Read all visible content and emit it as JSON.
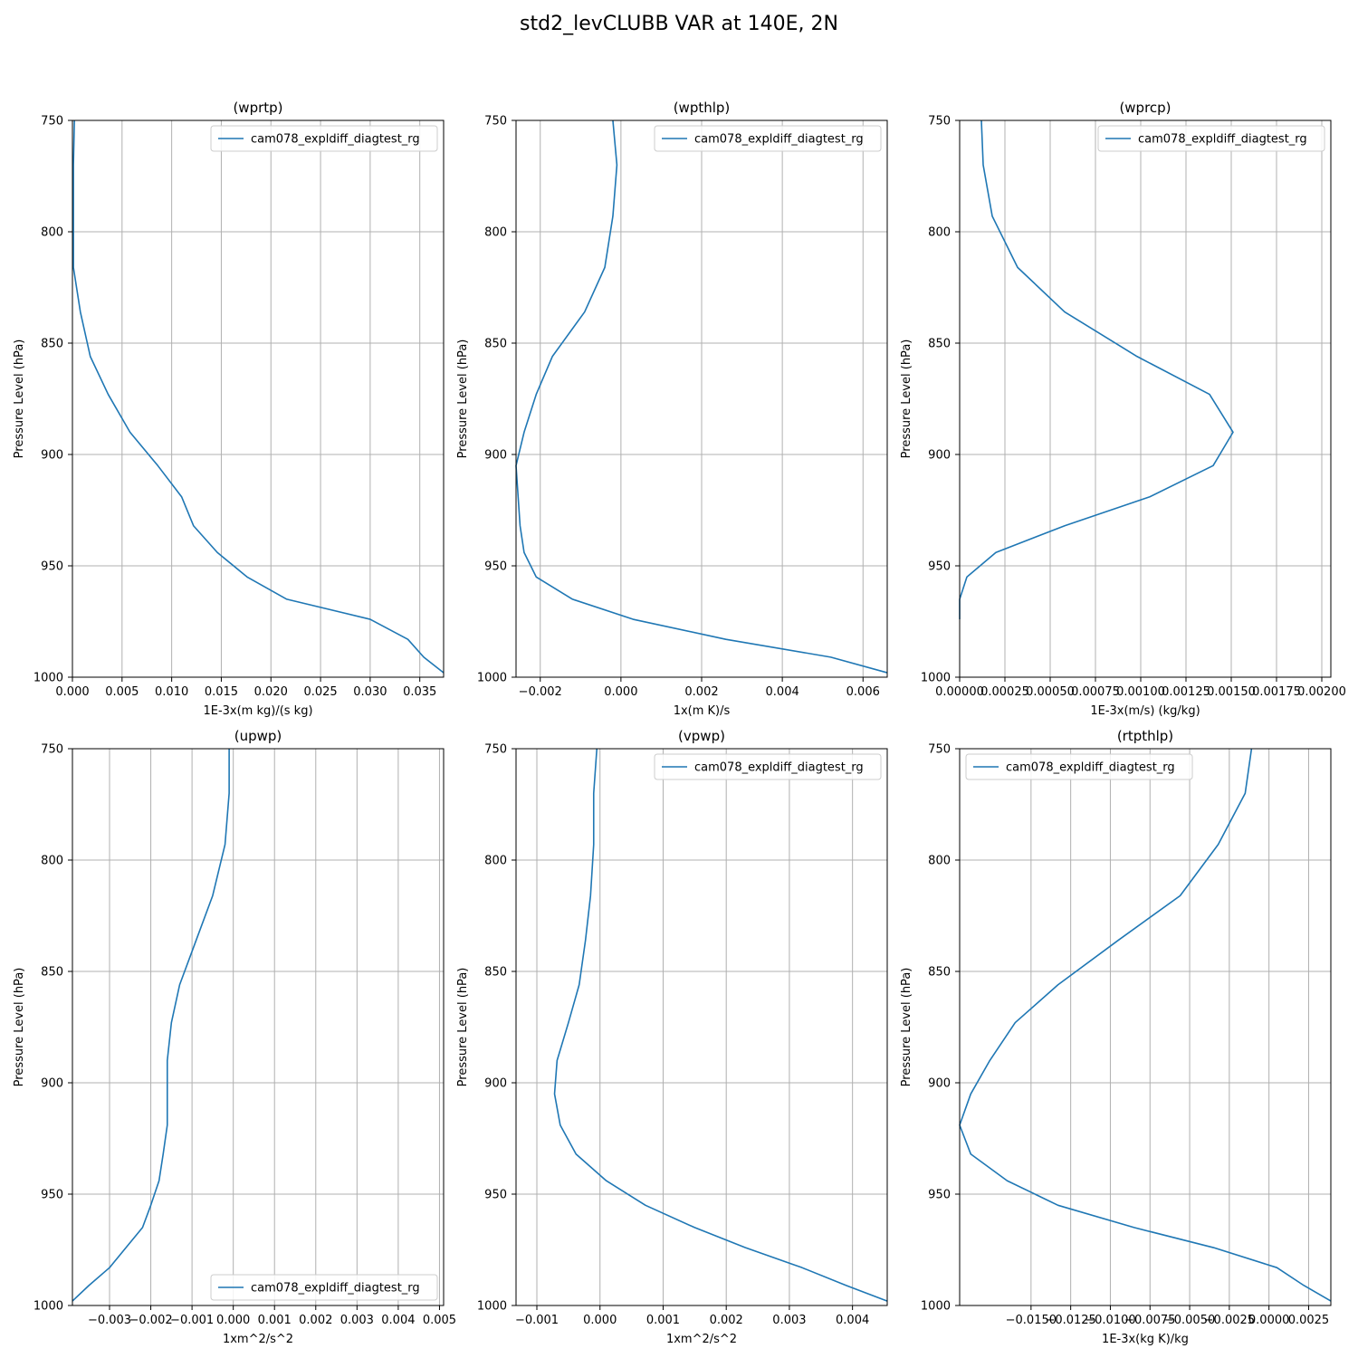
{
  "figure": {
    "suptitle": "std2_levCLUBB VAR at 140E, 2N"
  },
  "colors": {
    "series": "#1f77b4",
    "grid": "#b0b0b0",
    "axes": "#000000"
  },
  "chart_data": [
    {
      "type": "line",
      "title": "(wprtp)",
      "xlabel": "1E-3x(m kg)/(s kg)",
      "ylabel": "Pressure Level (hPa)",
      "xlim": [
        0.0,
        0.0374
      ],
      "ylim": [
        1000,
        750
      ],
      "xticks": [
        "0.000",
        "0.005",
        "0.010",
        "0.015",
        "0.020",
        "0.025",
        "0.030",
        "0.035"
      ],
      "xtick_values": [
        0.0,
        0.005,
        0.01,
        0.015,
        0.02,
        0.025,
        0.03,
        0.035
      ],
      "yticks": [
        750,
        800,
        850,
        900,
        950,
        1000
      ],
      "grid": true,
      "legend": "top-right",
      "series": [
        {
          "name": "cam078_expldiff_diagtest_rg",
          "x": [
            0.0002,
            0.0001,
            0.0001,
            0.0001,
            0.0008,
            0.0018,
            0.0036,
            0.0058,
            0.0086,
            0.011,
            0.0122,
            0.0146,
            0.0176,
            0.0216,
            0.03,
            0.0338,
            0.0354,
            0.0374
          ],
          "y": [
            750,
            770,
            793,
            816,
            836,
            856,
            873,
            890,
            905,
            919,
            932,
            944,
            955,
            965,
            974,
            983,
            991,
            998
          ]
        }
      ]
    },
    {
      "type": "line",
      "title": "(wpthlp)",
      "xlabel": "1x(m K)/s",
      "ylabel": "Pressure Level (hPa)",
      "xlim": [
        -0.0026,
        0.0066
      ],
      "ylim": [
        1000,
        750
      ],
      "xticks": [
        "−0.002",
        "0.000",
        "0.002",
        "0.004",
        "0.006"
      ],
      "xtick_values": [
        -0.002,
        0.0,
        0.002,
        0.004,
        0.006
      ],
      "yticks": [
        750,
        800,
        850,
        900,
        950,
        1000
      ],
      "grid": true,
      "legend": "top-right",
      "series": [
        {
          "name": "cam078_expldiff_diagtest_rg",
          "x": [
            -0.0002,
            -0.0001,
            -0.0002,
            -0.0004,
            -0.0009,
            -0.0017,
            -0.0021,
            -0.0024,
            -0.0026,
            -0.0025,
            -0.0024,
            -0.0021,
            -0.0012,
            0.0003,
            0.0026,
            0.0052,
            0.0066
          ],
          "y": [
            750,
            770,
            793,
            816,
            836,
            856,
            873,
            890,
            905,
            932,
            944,
            955,
            965,
            974,
            983,
            991,
            998
          ]
        }
      ]
    },
    {
      "type": "line",
      "title": "(wprcp)",
      "xlabel": "1E-3x(m/s) (kg/kg)",
      "ylabel": "Pressure Level (hPa)",
      "xlim": [
        0.0,
        0.00205
      ],
      "ylim": [
        1000,
        750
      ],
      "xticks": [
        "0.00000",
        "0.00025",
        "0.00050",
        "0.00075",
        "0.00100",
        "0.00125",
        "0.00150",
        "0.00175",
        "0.00200"
      ],
      "xtick_values": [
        0.0,
        0.00025,
        0.0005,
        0.00075,
        0.001,
        0.00125,
        0.0015,
        0.00175,
        0.002
      ],
      "yticks": [
        750,
        800,
        850,
        900,
        950,
        1000
      ],
      "grid": true,
      "legend": "top-right",
      "series": [
        {
          "name": "cam078_expldiff_diagtest_rg",
          "x": [
            0.00012,
            0.00013,
            0.00018,
            0.00032,
            0.00058,
            0.00098,
            0.00138,
            0.00151,
            0.0014,
            0.00105,
            0.00058,
            0.0002,
            4e-05,
            0.0,
            0.0
          ],
          "y": [
            750,
            770,
            793,
            816,
            836,
            856,
            873,
            890,
            905,
            919,
            932,
            944,
            955,
            965,
            974
          ]
        }
      ]
    },
    {
      "type": "line",
      "title": "(upwp)",
      "xlabel": "1xm^2/s^2",
      "ylabel": "Pressure Level (hPa)",
      "xlim": [
        -0.0039,
        0.0051
      ],
      "ylim": [
        1000,
        750
      ],
      "xticks": [
        "−0.003",
        "−0.002",
        "−0.001",
        "0.000",
        "0.001",
        "0.002",
        "0.003",
        "0.004",
        "0.005"
      ],
      "xtick_values": [
        -0.003,
        -0.002,
        -0.001,
        0.0,
        0.001,
        0.002,
        0.003,
        0.004,
        0.005
      ],
      "yticks": [
        750,
        800,
        850,
        900,
        950,
        1000
      ],
      "grid": true,
      "legend": "bottom-right",
      "series": [
        {
          "name": "cam078_expldiff_diagtest_rg",
          "x": [
            -0.0001,
            -0.0001,
            -0.0002,
            -0.0005,
            -0.0009,
            -0.0013,
            -0.0015,
            -0.0016,
            -0.0016,
            -0.0016,
            -0.0017,
            -0.0018,
            -0.002,
            -0.0022,
            -0.0026,
            -0.003,
            -0.0035,
            -0.0039
          ],
          "y": [
            750,
            770,
            793,
            816,
            836,
            856,
            873,
            890,
            905,
            919,
            932,
            944,
            955,
            965,
            974,
            983,
            991,
            998
          ]
        }
      ]
    },
    {
      "type": "line",
      "title": "(vpwp)",
      "xlabel": "1xm^2/s^2",
      "ylabel": "Pressure Level (hPa)",
      "xlim": [
        -0.00133,
        0.00455
      ],
      "ylim": [
        1000,
        750
      ],
      "xticks": [
        "−0.001",
        "0.000",
        "0.001",
        "0.002",
        "0.003",
        "0.004"
      ],
      "xtick_values": [
        -0.001,
        0.0,
        0.001,
        0.002,
        0.003,
        0.004
      ],
      "yticks": [
        750,
        800,
        850,
        900,
        950,
        1000
      ],
      "grid": true,
      "legend": "top-right",
      "series": [
        {
          "name": "cam078_expldiff_diagtest_rg",
          "x": [
            -5e-05,
            -0.0001,
            -0.0001,
            -0.00015,
            -0.00023,
            -0.00033,
            -0.0005,
            -0.00068,
            -0.00072,
            -0.00063,
            -0.00038,
            0.0001,
            0.00072,
            0.0015,
            0.0023,
            0.0032,
            0.0039,
            0.00455
          ],
          "y": [
            750,
            770,
            793,
            816,
            836,
            856,
            873,
            890,
            905,
            919,
            932,
            944,
            955,
            965,
            974,
            983,
            991,
            998
          ]
        }
      ]
    },
    {
      "type": "line",
      "title": "(rtpthlp)",
      "xlabel": "1E-3x(kg K)/kg",
      "ylabel": "Pressure Level (hPa)",
      "xlim": [
        -0.0195,
        0.0039
      ],
      "ylim": [
        1000,
        750
      ],
      "xticks": [
        "−0.0150",
        "−0.0125",
        "−0.0100",
        "−0.0075",
        "−0.0050",
        "−0.0025",
        "0.0000",
        "0.0025"
      ],
      "xtick_values": [
        -0.015,
        -0.0125,
        -0.01,
        -0.0075,
        -0.005,
        -0.0025,
        0.0,
        0.0025
      ],
      "yticks": [
        750,
        800,
        850,
        900,
        950,
        1000
      ],
      "grid": true,
      "legend": "top-left",
      "series": [
        {
          "name": "cam078_expldiff_diagtest_rg",
          "x": [
            -0.0011,
            -0.0015,
            -0.0032,
            -0.0056,
            -0.0095,
            -0.0133,
            -0.016,
            -0.0176,
            -0.0188,
            -0.0195,
            -0.0188,
            -0.0165,
            -0.0133,
            -0.0085,
            -0.0035,
            0.0005,
            0.0022,
            0.0039
          ],
          "y": [
            750,
            770,
            793,
            816,
            836,
            856,
            873,
            890,
            905,
            919,
            932,
            944,
            955,
            965,
            974,
            983,
            991,
            998
          ]
        }
      ]
    }
  ]
}
